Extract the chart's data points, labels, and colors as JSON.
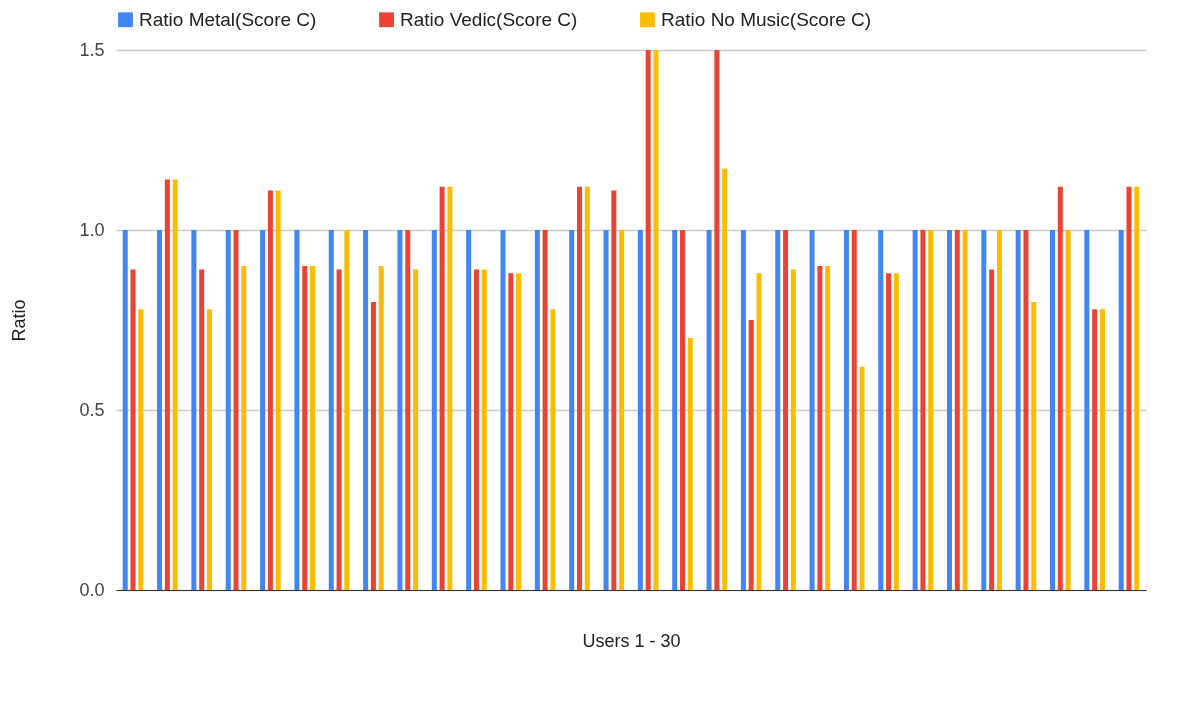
{
  "chart_data": {
    "type": "bar",
    "xlabel": "Users 1 - 30",
    "ylabel": "Ratio",
    "categories": [
      null,
      null,
      null,
      null,
      null,
      null,
      null,
      null,
      null,
      null,
      null,
      null,
      null,
      null,
      null,
      null,
      null,
      null,
      null,
      null,
      null,
      null,
      null,
      null,
      null,
      null,
      null,
      null,
      null,
      null
    ],
    "series": [
      {
        "name": "Ratio Metal(Score C)",
        "color": "#4285f4",
        "values": [
          1,
          1,
          1,
          1,
          1,
          1,
          1,
          1,
          1,
          1,
          1,
          1,
          1,
          1,
          1,
          1,
          1,
          1,
          1,
          1,
          1,
          1,
          1,
          1,
          1,
          1,
          1,
          1,
          1,
          1
        ]
      },
      {
        "name": "Ratio Vedic(Score C)",
        "color": "#ea4335",
        "values": [
          0.89,
          1.14,
          0.89,
          1,
          1.11,
          0.9,
          0.89,
          0.8,
          1,
          1.12,
          0.89,
          0.88,
          1,
          1.12,
          1.11,
          1.5,
          1,
          1.5,
          0.75,
          1,
          0.9,
          1,
          0.88,
          1,
          1,
          0.89,
          1,
          1.12,
          0.78,
          1.12
        ]
      },
      {
        "name": "Ratio No Music(Score C)",
        "color": "#fbbc04",
        "values": [
          0.78,
          1.14,
          0.78,
          0.9,
          1.11,
          0.9,
          1,
          0.9,
          0.89,
          1.12,
          0.89,
          0.88,
          0.78,
          1.12,
          1,
          1.5,
          0.7,
          1.17,
          0.88,
          0.89,
          0.9,
          0.62,
          0.88,
          1,
          1,
          1,
          0.8,
          1,
          0.78,
          1.12
        ]
      }
    ],
    "ylim": [
      0,
      1.5
    ],
    "yticks": [
      {
        "value": 0,
        "label": "0.0"
      },
      {
        "value": 0.5,
        "label": "0.5"
      },
      {
        "value": 1,
        "label": "1.0"
      },
      {
        "value": 1.5,
        "label": "1.5"
      }
    ],
    "grid": "y",
    "legend": "top"
  }
}
